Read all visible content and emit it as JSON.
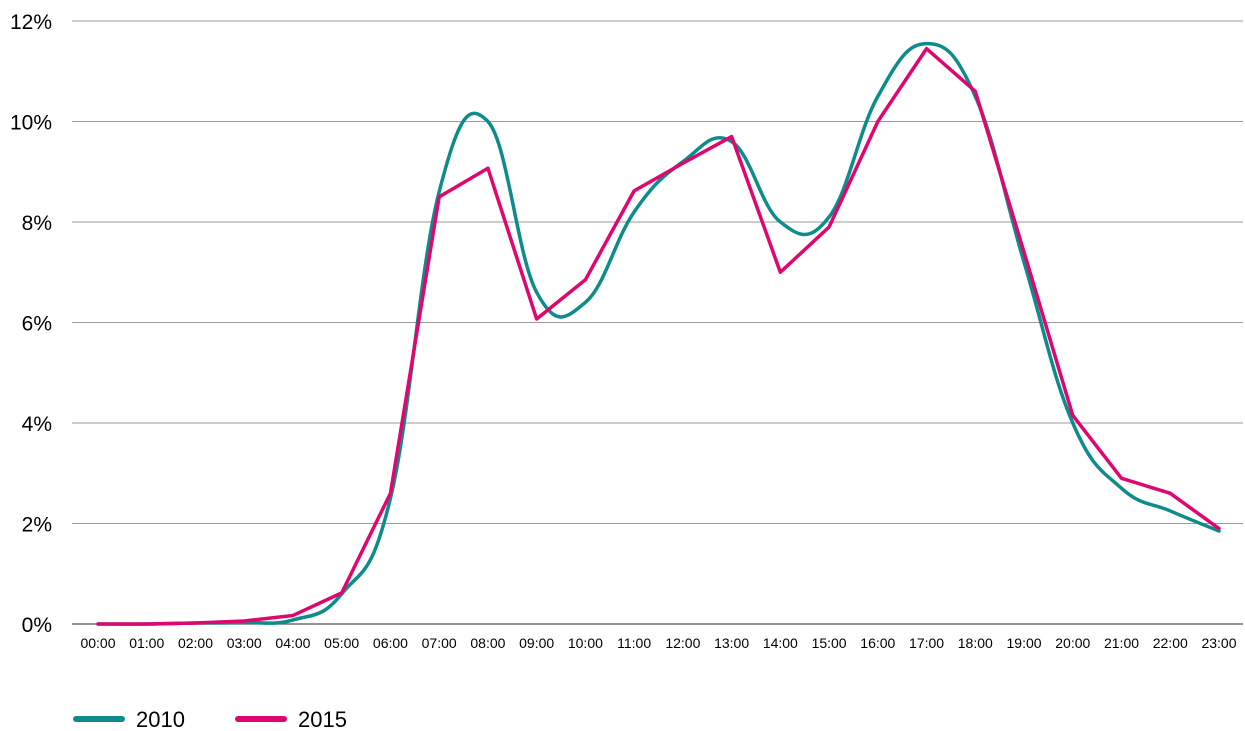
{
  "chart_data": {
    "type": "line",
    "title": "",
    "xlabel": "",
    "ylabel": "",
    "categories": [
      "00:00",
      "01:00",
      "02:00",
      "03:00",
      "04:00",
      "05:00",
      "06:00",
      "07:00",
      "08:00",
      "09:00",
      "10:00",
      "11:00",
      "12:00",
      "13:00",
      "14:00",
      "15:00",
      "16:00",
      "17:00",
      "18:00",
      "19:00",
      "20:00",
      "21:00",
      "22:00",
      "23:00"
    ],
    "ylim": [
      0,
      12
    ],
    "yticks": [
      0,
      2,
      4,
      6,
      8,
      10,
      12
    ],
    "ytick_labels": [
      "0%",
      "2%",
      "4%",
      "6%",
      "8%",
      "10%",
      "12%"
    ],
    "grid": true,
    "legend_position": "bottom-left",
    "series": [
      {
        "name": "2010",
        "color": "#0e8c8c",
        "style": "smooth",
        "values": [
          0.0,
          0.0,
          0.02,
          0.03,
          0.08,
          0.6,
          2.5,
          8.6,
          10.0,
          6.6,
          6.4,
          8.2,
          9.2,
          9.6,
          8.0,
          8.1,
          10.5,
          11.55,
          10.5,
          7.2,
          4.0,
          2.7,
          2.25,
          1.85
        ]
      },
      {
        "name": "2015",
        "color": "#e0066f",
        "style": "straight",
        "values": [
          0.0,
          0.0,
          0.02,
          0.06,
          0.17,
          0.62,
          2.6,
          8.5,
          9.07,
          6.07,
          6.85,
          8.62,
          9.17,
          9.7,
          7.0,
          7.9,
          10.0,
          11.45,
          10.6,
          7.4,
          4.15,
          2.9,
          2.6,
          1.9
        ]
      }
    ]
  }
}
